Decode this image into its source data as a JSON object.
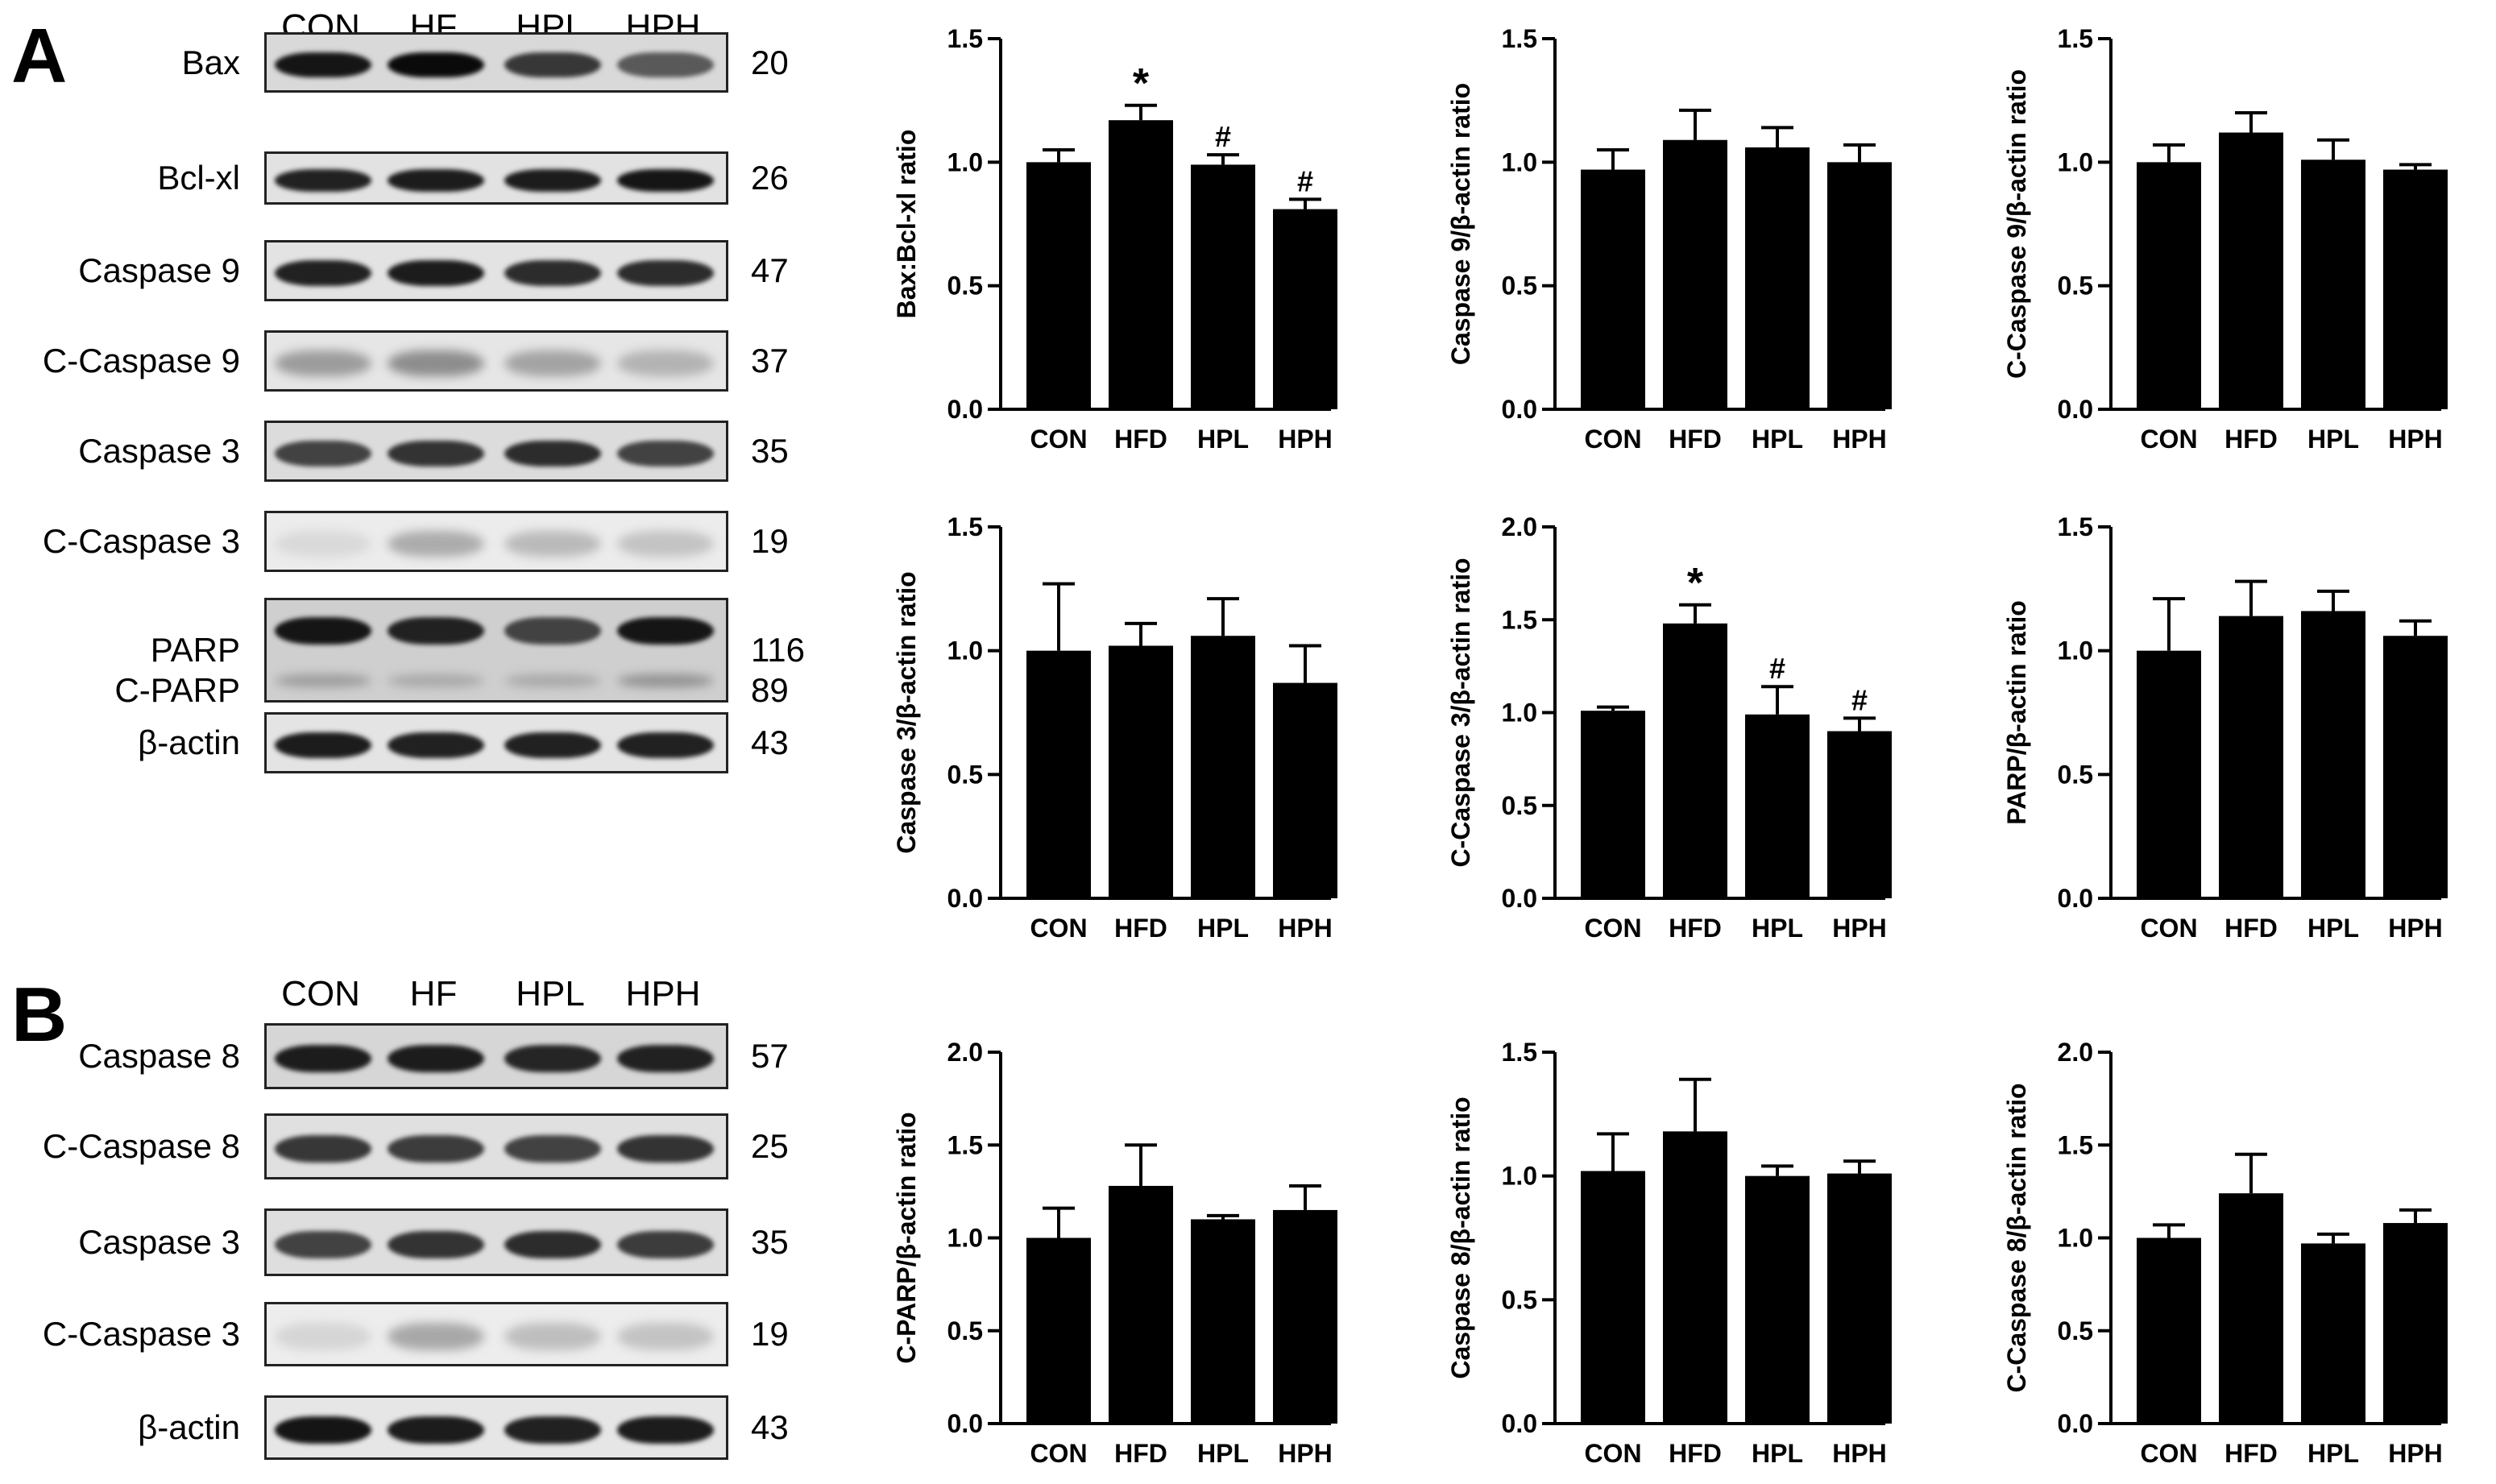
{
  "panels": [
    {
      "letter": "A",
      "lanes": [
        "CON",
        "HF",
        "HPL",
        "HPH"
      ],
      "blots": [
        {
          "label": "Bax",
          "mw": "20",
          "intensity": [
            0.95,
            1.0,
            0.8,
            0.65
          ],
          "bg": "#d9d9d9"
        },
        {
          "label": "Bcl-xl",
          "mw": "26",
          "intensity": [
            0.9,
            0.92,
            0.92,
            0.95
          ],
          "bg": "#e2e2e2"
        },
        {
          "label": "Caspase 9",
          "mw": "47",
          "intensity": [
            0.9,
            0.92,
            0.85,
            0.85
          ],
          "bg": "#e3e3e3"
        },
        {
          "label": "C-Caspase 9",
          "mw": "37",
          "intensity": [
            0.35,
            0.42,
            0.32,
            0.25
          ],
          "bg": "#e6e6e6"
        },
        {
          "label": "Caspase 3",
          "mw": "35",
          "intensity": [
            0.75,
            0.82,
            0.85,
            0.75
          ],
          "bg": "#dcdcdc"
        },
        {
          "label": "C-Caspase 3",
          "mw": "19",
          "intensity": [
            0.08,
            0.28,
            0.22,
            0.18
          ],
          "bg": "#ececec"
        },
        {
          "label": "PARP",
          "label2": "C-PARP",
          "mw": "116",
          "mw2": "89",
          "intensity": [
            0.95,
            0.9,
            0.75,
            0.95
          ],
          "intensity2": [
            0.35,
            0.3,
            0.3,
            0.4
          ],
          "bg": "#cfcfcf"
        },
        {
          "label": "β-actin",
          "mw": "43",
          "intensity": [
            0.92,
            0.9,
            0.9,
            0.9
          ],
          "bg": "#e4e4e4"
        }
      ]
    },
    {
      "letter": "B",
      "lanes": [
        "CON",
        "HF",
        "HPL",
        "HPH"
      ],
      "blots": [
        {
          "label": "Caspase 8",
          "mw": "57",
          "intensity": [
            0.92,
            0.92,
            0.88,
            0.9
          ],
          "bg": "#d6d6d6"
        },
        {
          "label": "C-Caspase 8",
          "mw": "25",
          "intensity": [
            0.8,
            0.78,
            0.75,
            0.82
          ],
          "bg": "#e0e0e0"
        },
        {
          "label": "Caspase 3",
          "mw": "35",
          "intensity": [
            0.75,
            0.82,
            0.85,
            0.78
          ],
          "bg": "#dedede"
        },
        {
          "label": "C-Caspase 3",
          "mw": "19",
          "intensity": [
            0.1,
            0.3,
            0.2,
            0.18
          ],
          "bg": "#ededed"
        },
        {
          "label": "β-actin",
          "mw": "43",
          "intensity": [
            0.95,
            0.92,
            0.9,
            0.92
          ],
          "bg": "#e6e6e6"
        }
      ]
    }
  ],
  "chart_data": [
    {
      "type": "bar",
      "categories": [
        "CON",
        "HFD",
        "HPL",
        "HPH"
      ],
      "values": [
        1.0,
        1.17,
        0.99,
        0.81
      ],
      "errors": [
        0.05,
        0.06,
        0.04,
        0.04
      ],
      "annotations": [
        "",
        "*",
        "#",
        "#"
      ],
      "ylabel": "Bax:Bcl-xl ratio",
      "ylim": [
        0,
        1.5
      ],
      "yticks": [
        "0.0",
        "0.5",
        "1.0",
        "1.5"
      ]
    },
    {
      "type": "bar",
      "categories": [
        "CON",
        "HFD",
        "HPL",
        "HPH"
      ],
      "values": [
        0.97,
        1.09,
        1.06,
        1.0
      ],
      "errors": [
        0.08,
        0.12,
        0.08,
        0.07
      ],
      "annotations": [
        "",
        "",
        "",
        ""
      ],
      "ylabel": "Caspase 9/β-actin ratio",
      "ylim": [
        0,
        1.5
      ],
      "yticks": [
        "0.0",
        "0.5",
        "1.0",
        "1.5"
      ]
    },
    {
      "type": "bar",
      "categories": [
        "CON",
        "HFD",
        "HPL",
        "HPH"
      ],
      "values": [
        1.0,
        1.12,
        1.01,
        0.97
      ],
      "errors": [
        0.07,
        0.08,
        0.08,
        0.02
      ],
      "annotations": [
        "",
        "",
        "",
        ""
      ],
      "ylabel": "C-Caspase 9/β-actin ratio",
      "ylim": [
        0,
        1.5
      ],
      "yticks": [
        "0.0",
        "0.5",
        "1.0",
        "1.5"
      ]
    },
    {
      "type": "bar",
      "categories": [
        "CON",
        "HFD",
        "HPL",
        "HPH"
      ],
      "values": [
        1.0,
        1.02,
        1.06,
        0.87
      ],
      "errors": [
        0.27,
        0.09,
        0.15,
        0.15
      ],
      "annotations": [
        "",
        "",
        "",
        ""
      ],
      "ylabel": "Caspase 3/β-actin ratio",
      "ylim": [
        0,
        1.5
      ],
      "yticks": [
        "0.0",
        "0.5",
        "1.0",
        "1.5"
      ]
    },
    {
      "type": "bar",
      "categories": [
        "CON",
        "HFD",
        "HPL",
        "HPH"
      ],
      "values": [
        1.01,
        1.48,
        0.99,
        0.9
      ],
      "errors": [
        0.02,
        0.1,
        0.15,
        0.07
      ],
      "annotations": [
        "",
        "*",
        "#",
        "#"
      ],
      "ylabel": "C-Caspase 3/β-actin ratio",
      "ylim": [
        0,
        2.0
      ],
      "yticks": [
        "0.0",
        "0.5",
        "1.0",
        "1.5",
        "2.0"
      ]
    },
    {
      "type": "bar",
      "categories": [
        "CON",
        "HFD",
        "HPL",
        "HPH"
      ],
      "values": [
        1.0,
        1.14,
        1.16,
        1.06
      ],
      "errors": [
        0.21,
        0.14,
        0.08,
        0.06
      ],
      "annotations": [
        "",
        "",
        "",
        ""
      ],
      "ylabel": "PARP/β-actin ratio",
      "ylim": [
        0,
        1.5
      ],
      "yticks": [
        "0.0",
        "0.5",
        "1.0",
        "1.5"
      ]
    },
    {
      "type": "bar",
      "categories": [
        "CON",
        "HFD",
        "HPL",
        "HPH"
      ],
      "values": [
        1.0,
        1.28,
        1.1,
        1.15
      ],
      "errors": [
        0.16,
        0.22,
        0.02,
        0.13
      ],
      "annotations": [
        "",
        "",
        "",
        ""
      ],
      "ylabel": "C-PARP/β-actin ratio",
      "ylim": [
        0,
        2.0
      ],
      "yticks": [
        "0.0",
        "0.5",
        "1.0",
        "1.5",
        "2.0"
      ]
    },
    {
      "type": "bar",
      "categories": [
        "CON",
        "HFD",
        "HPL",
        "HPH"
      ],
      "values": [
        1.02,
        1.18,
        1.0,
        1.01
      ],
      "errors": [
        0.15,
        0.21,
        0.04,
        0.05
      ],
      "annotations": [
        "",
        "",
        "",
        ""
      ],
      "ylabel": "Caspase 8/β-actin ratio",
      "ylim": [
        0,
        1.5
      ],
      "yticks": [
        "0.0",
        "0.5",
        "1.0",
        "1.5"
      ]
    },
    {
      "type": "bar",
      "categories": [
        "CON",
        "HFD",
        "HPL",
        "HPH"
      ],
      "values": [
        1.0,
        1.24,
        0.97,
        1.08
      ],
      "errors": [
        0.07,
        0.21,
        0.05,
        0.07
      ],
      "annotations": [
        "",
        "",
        "",
        ""
      ],
      "ylabel": "C-Caspase 8/β-actin ratio",
      "ylim": [
        0,
        2.0
      ],
      "yticks": [
        "0.0",
        "0.5",
        "1.0",
        "1.5",
        "2.0"
      ]
    }
  ]
}
